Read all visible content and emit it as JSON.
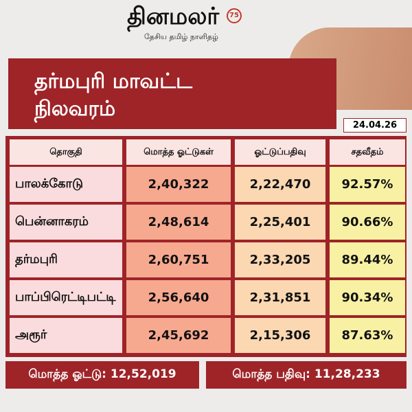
{
  "header": {
    "logo": "தினமலர்",
    "badge": "75",
    "tagline": "தேசிய தமிழ் நாளிதழ்"
  },
  "title": [
    "தர்மபுரி மாவட்ட",
    "நிலவரம்"
  ],
  "date": "24.04.26",
  "table": {
    "columns": [
      "தொகுதி",
      "மொத்த ஓட்டுகள்",
      "ஓட்டுப்பதிவு",
      "சதவீதம்"
    ],
    "rows": [
      [
        "பாலக்கோடு",
        "2,40,322",
        "2,22,470",
        "92.57%"
      ],
      [
        "பென்னாகரம்",
        "2,48,614",
        "2,25,401",
        "90.66%"
      ],
      [
        "தர்மபுரி",
        "2,60,751",
        "2,33,205",
        "89.44%"
      ],
      [
        "பாப்பிரெட்டிபட்டி",
        "2,56,640",
        "2,31,851",
        "90.34%"
      ],
      [
        "அரூர்",
        "2,45,692",
        "2,15,306",
        "87.63%"
      ]
    ]
  },
  "footer": [
    "மொத்த ஓட்டு: 12,52,019",
    "மொத்த பதிவு: 11,28,233"
  ]
}
